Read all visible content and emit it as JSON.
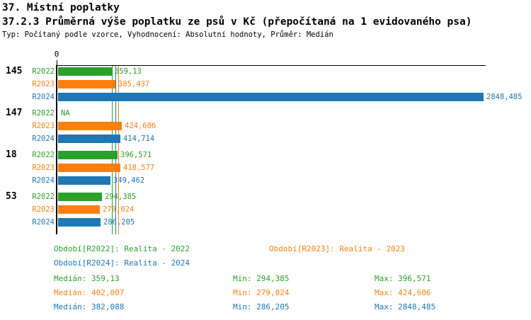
{
  "header": {
    "title": "37. Místní poplatky",
    "subtitle": "37.2.3 Průměrná výše poplatku ze psů v Kč (přepočítaná na 1 evidovaného psa)",
    "meta": "Typ: Počítaný podle vzorce, Vyhodnocení: Absolutní hodnoty, Průměr: Medián"
  },
  "chart_data": {
    "type": "bar",
    "orientation": "horizontal",
    "x_axis": {
      "tick_labels": [
        "0"
      ],
      "range": [
        0,
        2866
      ],
      "grid": false
    },
    "series": [
      "R2022",
      "R2023",
      "R2024"
    ],
    "series_colors": {
      "R2022": "#2ca02c",
      "R2023": "#ff7f0e",
      "R2024": "#1f77b4"
    },
    "groups": [
      {
        "label": "145",
        "values": [
          359.13,
          385.437,
          2848.485
        ],
        "display": [
          "359,13",
          "385,437",
          "2848,485"
        ]
      },
      {
        "label": "147",
        "values": [
          null,
          424.606,
          414.714
        ],
        "display": [
          "NA",
          "424,606",
          "414,714"
        ]
      },
      {
        "label": "18",
        "values": [
          396.571,
          418.577,
          349.462
        ],
        "display": [
          "396,571",
          "418,577",
          "349,462"
        ]
      },
      {
        "label": "53",
        "values": [
          294.385,
          279.024,
          286.205
        ],
        "display": [
          "294,385",
          "279,024",
          "286,205"
        ]
      }
    ],
    "median_lines": [
      {
        "series": "R2022",
        "value": 359.13
      },
      {
        "series": "R2024",
        "value": 382.088
      },
      {
        "series": "R2023",
        "value": 402.007
      }
    ]
  },
  "legend": {
    "items": [
      {
        "label": "Období[R2022]: Realita - 2022",
        "color": "#2ca02c"
      },
      {
        "label": "Období[R2023]: Realita - 2023",
        "color": "#ff7f0e"
      },
      {
        "label": "Období[R2024]: Realita - 2024",
        "color": "#1f77b4"
      }
    ]
  },
  "stats": {
    "rows": [
      {
        "median": "Medián: 359,13",
        "min": "Min: 294,385",
        "max": "Max: 396,571",
        "color": "#2ca02c"
      },
      {
        "median": "Medián: 402,007",
        "min": "Min: 279,024",
        "max": "Max: 424,606",
        "color": "#ff7f0e"
      },
      {
        "median": "Medián: 382,088",
        "min": "Min: 286,205",
        "max": "Max: 2848,485",
        "color": "#1f77b4"
      }
    ]
  }
}
